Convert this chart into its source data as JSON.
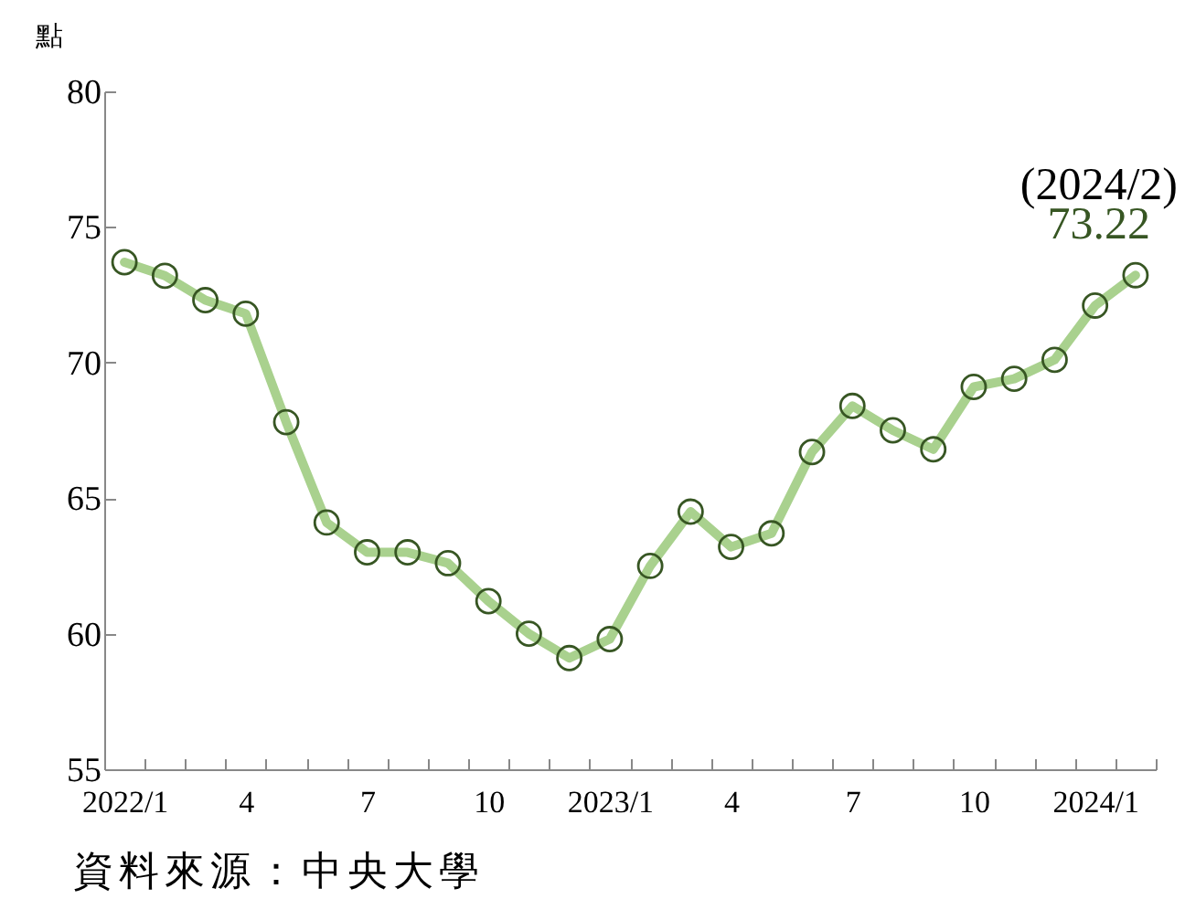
{
  "chart_data": {
    "type": "line",
    "ylabel": "點",
    "categories": [
      "2022/1",
      null,
      null,
      "4",
      null,
      null,
      "7",
      null,
      null,
      "10",
      null,
      null,
      "2023/1",
      null,
      null,
      "4",
      null,
      null,
      "7",
      null,
      null,
      "10",
      null,
      null,
      "2024/1",
      null
    ],
    "series": [
      {
        "color": "#a9d18e",
        "values": [
          73.7,
          73.2,
          72.3,
          71.8,
          67.8,
          64.1,
          63.0,
          63.0,
          62.6,
          61.2,
          60.0,
          59.1,
          59.8,
          62.5,
          64.5,
          63.2,
          63.7,
          66.7,
          68.4,
          67.5,
          66.8,
          69.1,
          69.4,
          70.1,
          72.1,
          73.22
        ],
        "value_labels": [
          null,
          null,
          null,
          null,
          null,
          null,
          null,
          null,
          null,
          null,
          null,
          null,
          null,
          null,
          null,
          null,
          null,
          null,
          null,
          null,
          null,
          null,
          null,
          null,
          null,
          "73.22"
        ]
      }
    ],
    "ylim": [
      55,
      80
    ],
    "yticks": [
      55,
      60,
      65,
      70,
      75,
      80
    ],
    "marker": "circle",
    "grid": false,
    "annotations": [
      "(2024/2)",
      "資料來源：中央大學"
    ]
  }
}
